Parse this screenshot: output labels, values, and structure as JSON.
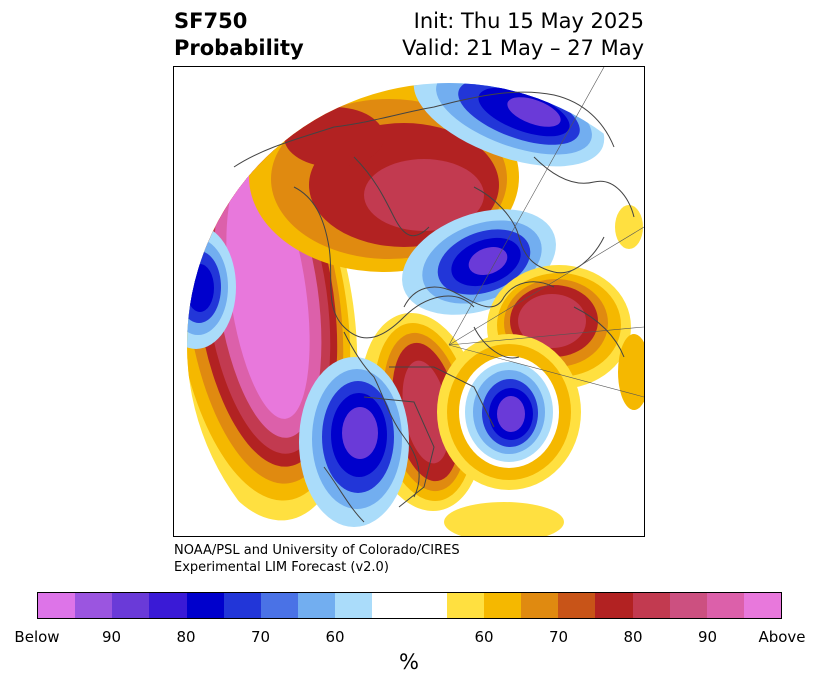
{
  "header": {
    "title_line1": "SF750",
    "title_line2": "Probability",
    "init_text": "Init: Thu 15 May 2025",
    "valid_text": "Valid: 21 May – 27 May"
  },
  "credit": {
    "line1": "NOAA/PSL and University of Colorado/CIRES",
    "line2": "Experimental LIM Forecast (v2.0)"
  },
  "colorbar": {
    "unit": "%",
    "colors": [
      "#dd74e8",
      "#9b55e0",
      "#6a3ad8",
      "#3a1ad6",
      "#0000cc",
      "#2236d8",
      "#4a72e6",
      "#72aef0",
      "#aadcfa",
      "#ffffff",
      "#ffffff",
      "#ffe040",
      "#f5b800",
      "#e08a10",
      "#c85418",
      "#b22222",
      "#c23a50",
      "#cc5080",
      "#dc60aa",
      "#e878dc"
    ],
    "tick_labels": [
      {
        "label": "Below"
      },
      {
        "label": "90"
      },
      {
        "label": "80"
      },
      {
        "label": "70"
      },
      {
        "label": "60"
      },
      {
        "label": "60"
      },
      {
        "label": "70"
      },
      {
        "label": "80"
      },
      {
        "label": "90"
      },
      {
        "label": "Above"
      }
    ]
  },
  "map": {
    "projection": "polar-stereographic-north",
    "below_colors": {
      "deep": "#0000cc",
      "mid": "#4a72e6",
      "light": "#aadcfa",
      "purple": "#6a3ad8"
    },
    "above_colors": {
      "yellow": "#ffe040",
      "gold": "#f5b800",
      "orange": "#e08a10",
      "red": "#b22222",
      "crimson": "#c23a50",
      "pink": "#dc60aa",
      "magenta": "#e878dc"
    }
  }
}
